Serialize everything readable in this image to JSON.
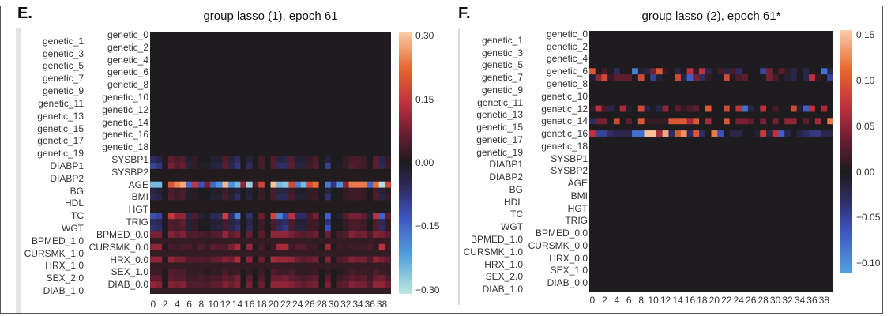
{
  "panels": [
    {
      "letter": "E.",
      "title": "group lasso (1), epoch 61"
    },
    {
      "letter": "F.",
      "title": "group lasso (2), epoch 61*"
    }
  ],
  "chart_data": [
    {
      "type": "heatmap",
      "title": "group lasso (1), epoch 61",
      "colormap": "icefire",
      "center": 0,
      "row_labels": [
        "genetic_0",
        "genetic_1",
        "genetic_2",
        "genetic_3",
        "genetic_4",
        "genetic_5",
        "genetic_6",
        "genetic_7",
        "genetic_8",
        "genetic_9",
        "genetic_10",
        "genetic_11",
        "genetic_12",
        "genetic_13",
        "genetic_14",
        "genetic_15",
        "genetic_16",
        "genetic_17",
        "genetic_18",
        "genetic_19",
        "SYSBP1",
        "DIABP1",
        "SYSBP2",
        "DIABP2",
        "AGE",
        "BG",
        "BMI",
        "HDL",
        "HGT",
        "TC",
        "TRIG",
        "WGT",
        "BPMED_0.0",
        "BPMED_1.0",
        "CURSMK_0.0",
        "CURSMK_1.0",
        "HRX_0.0",
        "HRX_1.0",
        "SEX_1.0",
        "SEX_2.0",
        "DIAB_0.0",
        "DIAB_1.0"
      ],
      "n_columns": 40,
      "x_ticks": [
        "0",
        "2",
        "4",
        "6",
        "8",
        "10",
        "12",
        "14",
        "16",
        "18",
        "20",
        "22",
        "24",
        "26",
        "28",
        "30",
        "32",
        "34",
        "36",
        "38"
      ],
      "colorbar": {
        "range": [
          -0.31,
          0.31
        ],
        "tick_values": [
          0.3,
          0.15,
          0.0,
          -0.15,
          -0.3
        ],
        "tick_labels": [
          "0.30",
          "0.15",
          "0.00",
          "−0.15",
          "−0.30"
        ]
      },
      "default_value": 0,
      "values": {
        "SYSBP1": [
          -0.06,
          -0.04,
          0,
          0.06,
          0.04,
          0.05,
          -0.02,
          0.02,
          0,
          0,
          -0.02,
          -0.02,
          0.05,
          -0.03,
          -0.06,
          0,
          -0.03,
          0,
          0.04,
          0,
          0.05,
          -0.03,
          -0.04,
          0.05,
          -0.02,
          -0.02,
          0.02,
          0.04,
          0,
          -0.03,
          0,
          0,
          0.02,
          0.04,
          0.04,
          0.03,
          0,
          0.06,
          -0.04,
          0.02
        ],
        "DIABP1": [
          -0.1,
          -0.08,
          0,
          0.08,
          0.05,
          0.07,
          -0.03,
          0.02,
          -0.01,
          -0.01,
          -0.03,
          -0.03,
          0.06,
          -0.04,
          -0.08,
          0,
          -0.06,
          0,
          0.04,
          0,
          0.05,
          -0.06,
          -0.06,
          0.06,
          -0.03,
          -0.03,
          0.03,
          0.05,
          0,
          -0.09,
          0,
          -0.01,
          0.02,
          0.05,
          0.04,
          0.03,
          0,
          0.06,
          -0.05,
          0.03
        ],
        "SYSBP2": 0.005,
        "DIABP2": 0.005,
        "AGE": [
          -0.25,
          -0.25,
          0,
          0.2,
          0.25,
          0.28,
          -0.15,
          0.15,
          -0.12,
          0.08,
          -0.15,
          -0.2,
          0.29,
          -0.2,
          -0.25,
          0.1,
          -0.28,
          0.05,
          0.17,
          0,
          0.3,
          -0.25,
          -0.27,
          0.18,
          -0.18,
          -0.25,
          0.18,
          0.23,
          0,
          -0.17,
          -0.08,
          -0.2,
          0.1,
          0.24,
          0.24,
          0.24,
          -0.15,
          0.23,
          -0.3,
          0.17
        ],
        "BG": [
          -0.03,
          -0.02,
          0,
          0.04,
          0.03,
          0.04,
          -0.01,
          0.01,
          0,
          0,
          -0.01,
          -0.01,
          0.03,
          -0.01,
          -0.03,
          0,
          -0.02,
          0,
          0.02,
          0,
          0.04,
          -0.03,
          -0.03,
          0.03,
          -0.01,
          -0.01,
          0.02,
          0.02,
          0,
          -0.03,
          0,
          0,
          0.02,
          0.03,
          0.03,
          0.02,
          0,
          0.04,
          -0.02,
          0.01
        ],
        "BMI": [
          -0.05,
          -0.04,
          0,
          0.05,
          0.03,
          0.04,
          -0.01,
          0.01,
          0,
          0,
          -0.02,
          -0.02,
          0.04,
          -0.02,
          -0.06,
          0,
          -0.03,
          0,
          0.03,
          0,
          0.04,
          -0.05,
          -0.05,
          0.04,
          -0.02,
          -0.02,
          0.02,
          0.03,
          0,
          -0.07,
          0,
          0,
          0.02,
          0.03,
          0.03,
          0.02,
          0,
          0.05,
          -0.04,
          0.02
        ],
        "HDL": 0.005,
        "HGT": 0.005,
        "TC": [
          -0.12,
          -0.1,
          0,
          0.15,
          0.1,
          0.1,
          -0.04,
          0.05,
          -0.02,
          -0.01,
          -0.05,
          -0.05,
          0.16,
          -0.06,
          -0.18,
          0,
          -0.07,
          0,
          0.07,
          0,
          0.17,
          -0.18,
          -0.1,
          0.14,
          -0.06,
          -0.06,
          0.04,
          0.08,
          0,
          -0.14,
          0,
          -0.02,
          0.05,
          0.08,
          0.08,
          0.06,
          -0.02,
          0.14,
          -0.14,
          0.06
        ],
        "TRIG": [
          -0.06,
          -0.05,
          0,
          0.05,
          0.04,
          0.06,
          -0.02,
          0.02,
          0,
          0,
          -0.02,
          -0.02,
          0.04,
          -0.03,
          -0.05,
          0,
          -0.04,
          0,
          0.03,
          0,
          0.04,
          -0.05,
          -0.06,
          0.04,
          -0.02,
          -0.02,
          0.03,
          0.03,
          0,
          -0.07,
          0,
          0,
          0.02,
          0.04,
          0.04,
          0.03,
          0,
          0.05,
          -0.05,
          0.02
        ],
        "WGT": [
          -0.07,
          -0.06,
          0,
          0.05,
          0.04,
          0.05,
          -0.02,
          0.02,
          0,
          0,
          -0.02,
          -0.03,
          0.04,
          -0.04,
          -0.07,
          0,
          -0.05,
          0,
          0.03,
          0,
          0.04,
          -0.06,
          -0.08,
          0.04,
          -0.03,
          -0.03,
          0.03,
          0.03,
          0,
          -0.12,
          0,
          0,
          0.02,
          0.04,
          0.04,
          0.03,
          0,
          0.05,
          -0.06,
          0.02
        ],
        "BPMED_0.0": [
          0.08,
          0.08,
          0,
          0.09,
          0.07,
          0.09,
          0.04,
          0.05,
          0.04,
          0.03,
          0.05,
          0.05,
          0.1,
          0.06,
          0.08,
          0,
          0.07,
          0,
          0.06,
          0,
          0.1,
          0.1,
          0.1,
          0.08,
          0.06,
          0.05,
          0.06,
          0.07,
          0,
          0.07,
          0,
          0.04,
          0.05,
          0.09,
          0.07,
          0.08,
          0.04,
          0.09,
          0.08,
          0.06
        ],
        "BPMED_1.0": 0.02,
        "CURSMK_0.0": [
          0.1,
          0.1,
          0,
          0.04,
          0.03,
          0.04,
          0.04,
          0.02,
          0.05,
          0.02,
          0.06,
          0.05,
          0.04,
          0.08,
          0.12,
          0,
          0.1,
          0,
          0.04,
          0,
          0.03,
          0.12,
          0.12,
          0.03,
          0.05,
          0.05,
          0.03,
          0.03,
          0,
          0.11,
          0,
          0.03,
          0.02,
          0.03,
          0.03,
          0.03,
          0.04,
          0.02,
          0.14,
          0.03
        ],
        "CURSMK_1.0": 0.02,
        "HRX_0.0": [
          0.1,
          0.1,
          0,
          0.1,
          0.08,
          0.08,
          0.05,
          0.05,
          0.05,
          0.04,
          0.06,
          0.07,
          0.09,
          0.08,
          0.13,
          0,
          0.1,
          0,
          0.07,
          0,
          0.12,
          0.11,
          0.11,
          0.1,
          0.07,
          0.06,
          0.07,
          0.08,
          0,
          0.09,
          0,
          0.05,
          0.06,
          0.09,
          0.08,
          0.08,
          0.05,
          0.1,
          0.08,
          0.06
        ],
        "HRX_1.0": 0.02,
        "SEX_1.0": [
          0.03,
          0.03,
          0,
          0.05,
          0.04,
          0.04,
          0.02,
          0.02,
          0.02,
          0.01,
          0.02,
          0.02,
          0.04,
          0.02,
          0.03,
          0,
          0.02,
          0,
          0.03,
          0,
          0.05,
          0.03,
          0.03,
          0.04,
          0.02,
          0.02,
          0.02,
          0.03,
          0,
          0.02,
          0,
          0.01,
          0.02,
          0.04,
          0.03,
          0.03,
          0.02,
          0.05,
          0.03,
          0.02
        ],
        "SEX_2.0": [
          0.06,
          0.06,
          0,
          0.06,
          0.05,
          0.05,
          0.03,
          0.03,
          0.04,
          0.03,
          0.04,
          0.04,
          0.06,
          0.05,
          0.08,
          0,
          0.06,
          0,
          0.05,
          0,
          0.07,
          0.07,
          0.08,
          0.06,
          0.05,
          0.04,
          0.05,
          0.06,
          0,
          0.06,
          0,
          0.03,
          0.04,
          0.06,
          0.05,
          0.06,
          0.03,
          0.07,
          0.08,
          0.04
        ],
        "DIAB_0.0": [
          0.1,
          0.09,
          0,
          0.09,
          0.08,
          0.09,
          0.05,
          0.05,
          0.05,
          0.04,
          0.06,
          0.06,
          0.09,
          0.07,
          0.09,
          0,
          0.08,
          0,
          0.07,
          0,
          0.1,
          0.1,
          0.1,
          0.09,
          0.07,
          0.06,
          0.07,
          0.08,
          0,
          0.08,
          0,
          0.05,
          0.06,
          0.09,
          0.08,
          0.08,
          0.05,
          0.1,
          0.1,
          0.07
        ],
        "DIAB_1.0": 0.02
      }
    },
    {
      "type": "heatmap",
      "title": "group lasso (2), epoch 61*",
      "colormap": "icefire",
      "center": 0,
      "row_labels": [
        "genetic_0",
        "genetic_1",
        "genetic_2",
        "genetic_3",
        "genetic_4",
        "genetic_5",
        "genetic_6",
        "genetic_7",
        "genetic_8",
        "genetic_9",
        "genetic_10",
        "genetic_11",
        "genetic_12",
        "genetic_13",
        "genetic_14",
        "genetic_15",
        "genetic_16",
        "genetic_17",
        "genetic_18",
        "genetic_19",
        "SYSBP1",
        "DIABP1",
        "SYSBP2",
        "DIABP2",
        "AGE",
        "BG",
        "BMI",
        "HDL",
        "HGT",
        "TC",
        "TRIG",
        "WGT",
        "BPMED_0.0",
        "BPMED_1.0",
        "CURSMK_0.0",
        "CURSMK_1.0",
        "HRX_0.0",
        "HRX_1.0",
        "SEX_1.0",
        "SEX_2.0",
        "DIAB_0.0",
        "DIAB_1.0"
      ],
      "n_columns": 40,
      "x_ticks": [
        "0",
        "2",
        "4",
        "6",
        "8",
        "10",
        "12",
        "14",
        "16",
        "18",
        "20",
        "22",
        "24",
        "26",
        "28",
        "30",
        "32",
        "34",
        "36",
        "38"
      ],
      "colorbar": {
        "range": [
          -0.11,
          0.155
        ],
        "tick_values": [
          0.15,
          0.1,
          0.05,
          0.0,
          -0.05,
          -0.1
        ],
        "tick_labels": [
          "0.15",
          "0.10",
          "0.05",
          "0.00",
          "−0.05",
          "−0.10"
        ]
      },
      "default_value": 0,
      "values": {
        "genetic_6": [
          0.1,
          0,
          0.02,
          0,
          -0.03,
          0,
          0,
          -0.09,
          -0.01,
          -0.02,
          0.04,
          0.1,
          0.01,
          0,
          -0.02,
          0,
          0.07,
          0.01,
          0.07,
          -0.02,
          0,
          0.02,
          -0.02,
          0.02,
          -0.03,
          0,
          0,
          0,
          -0.05,
          0.04,
          0,
          0.03,
          0.01,
          -0.02,
          0,
          -0.02,
          0,
          0,
          -0.08,
          -0.02
        ],
        "genetic_7": [
          -0.01,
          0.05,
          0.09,
          0.01,
          0.03,
          0.03,
          0.03,
          0,
          0.09,
          0,
          -0.05,
          -0.01,
          0,
          0,
          0.09,
          -0.02,
          -0.07,
          0.04,
          -0.03,
          0.01,
          0,
          0,
          0.09,
          0,
          0.02,
          0.03,
          0,
          0,
          0,
          0.04,
          0.02,
          0,
          -0.01,
          -0.02,
          0,
          -0.02,
          0.07,
          0.01,
          0,
          -0.05
        ],
        "genetic_12": [
          0.01,
          0.07,
          0.02,
          -0.02,
          0,
          0.06,
          -0.01,
          0,
          0.09,
          -0.02,
          0,
          -0.02,
          0.05,
          0,
          0.03,
          0.01,
          0.02,
          0.03,
          0,
          0.1,
          0,
          0,
          0.09,
          0,
          0.07,
          -0.08,
          -0.02,
          0,
          0.07,
          0,
          0.02,
          0,
          0,
          0.09,
          -0.01,
          -0.07,
          0.07,
          0,
          0.06,
          0
        ],
        "genetic_14": [
          -0.03,
          0.04,
          0.04,
          0,
          0.09,
          0,
          0.03,
          0,
          0.1,
          0.01,
          0.01,
          0.01,
          0.01,
          0.1,
          0.1,
          0.1,
          0.06,
          0.1,
          0,
          0.06,
          0,
          0,
          0.1,
          0,
          0.04,
          0.04,
          0.03,
          0,
          0.04,
          0,
          0.04,
          0,
          0.05,
          0.05,
          0,
          0.03,
          0,
          0.06,
          0,
          0.12
        ],
        "genetic_16": [
          0.07,
          -0.05,
          -0.05,
          -0.03,
          -0.02,
          -0.02,
          -0.02,
          -0.08,
          -0.08,
          0.15,
          0.15,
          0.06,
          0.14,
          -0.03,
          0.1,
          0.13,
          -0.03,
          0.1,
          -0.03,
          0,
          0.12,
          -0.06,
          0,
          -0.02,
          -0.02,
          0,
          0,
          -0.01,
          0.08,
          -0.02,
          0.07,
          -0.07,
          -0.02,
          0,
          -0.02,
          -0.03,
          -0.04,
          -0.04,
          -0.02,
          -0.02
        ]
      }
    }
  ]
}
